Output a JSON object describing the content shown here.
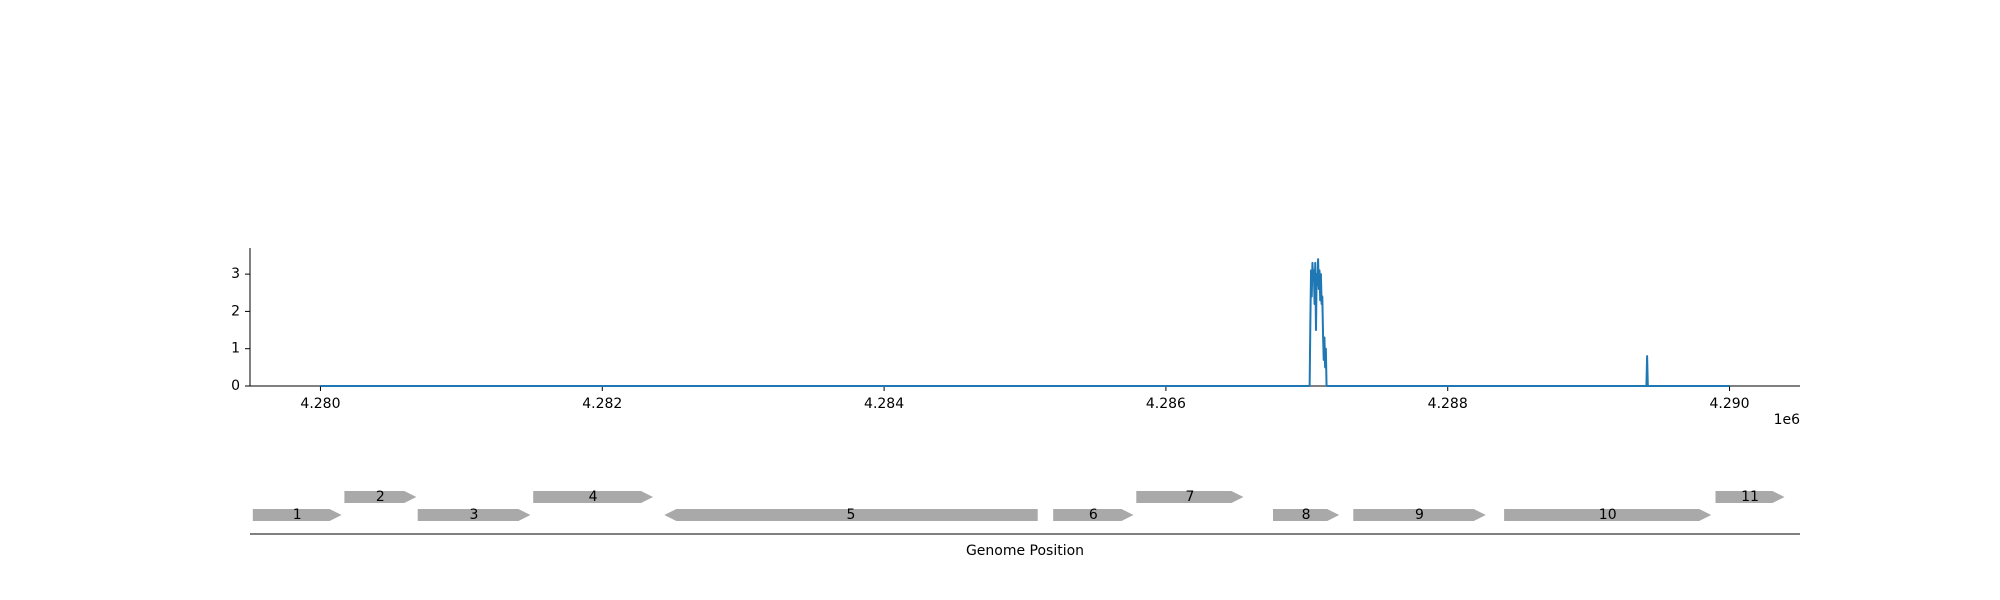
{
  "chart_data": [
    {
      "type": "line",
      "title": "",
      "xlabel": "",
      "ylabel": "",
      "xlim": [
        4279500,
        4290500
      ],
      "ylim": [
        0,
        3.7
      ],
      "x_ticks": [
        4280000,
        4282000,
        4284000,
        4286000,
        4288000,
        4290000
      ],
      "x_tick_labels": [
        "4.280",
        "4.282",
        "4.284",
        "4.286",
        "4.288",
        "4.290"
      ],
      "x_offset_label": "1e6",
      "y_ticks": [
        0,
        1,
        2,
        3
      ],
      "y_tick_labels": [
        "0",
        "1",
        "2",
        "3"
      ],
      "grid": false,
      "series": [
        {
          "color": "#1f77b4",
          "x": [
            4280000,
            4287020,
            4287025,
            4287030,
            4287035,
            4287040,
            4287045,
            4287050,
            4287055,
            4287060,
            4287065,
            4287070,
            4287075,
            4287080,
            4287085,
            4287090,
            4287095,
            4287100,
            4287105,
            4287110,
            4287115,
            4287120,
            4287125,
            4287130,
            4287135,
            4287140,
            4289410,
            4289415,
            4289420,
            4289425,
            4290000
          ],
          "y": [
            0,
            0,
            1.7,
            3.1,
            2.4,
            3.3,
            2.9,
            3.1,
            2.2,
            3.3,
            1.5,
            3.0,
            2.7,
            3.4,
            2.6,
            3.1,
            2.3,
            3.0,
            2.2,
            2.4,
            1.4,
            0.7,
            1.3,
            0.5,
            1.0,
            0,
            0,
            0.8,
            0,
            0,
            0
          ]
        }
      ]
    },
    {
      "type": "gene_track",
      "xlabel": "Genome Position",
      "xlim": [
        4279500,
        4290500
      ],
      "genes": [
        {
          "label": "1",
          "start": 4279520,
          "end": 4280150,
          "strand": "+",
          "row": 0
        },
        {
          "label": "2",
          "start": 4280170,
          "end": 4280680,
          "strand": "+",
          "row": 1
        },
        {
          "label": "3",
          "start": 4280690,
          "end": 4281490,
          "strand": "+",
          "row": 0
        },
        {
          "label": "4",
          "start": 4281510,
          "end": 4282360,
          "strand": "+",
          "row": 1
        },
        {
          "label": "5",
          "start": 4282440,
          "end": 4285090,
          "strand": "-",
          "row": 0
        },
        {
          "label": "6",
          "start": 4285200,
          "end": 4285770,
          "strand": "+",
          "row": 0
        },
        {
          "label": "7",
          "start": 4285790,
          "end": 4286550,
          "strand": "+",
          "row": 1
        },
        {
          "label": "8",
          "start": 4286760,
          "end": 4287230,
          "strand": "+",
          "row": 0
        },
        {
          "label": "9",
          "start": 4287330,
          "end": 4288270,
          "strand": "+",
          "row": 0
        },
        {
          "label": "10",
          "start": 4288400,
          "end": 4289870,
          "strand": "+",
          "row": 0
        },
        {
          "label": "11",
          "start": 4289900,
          "end": 4290390,
          "strand": "+",
          "row": 1
        }
      ],
      "gene_color": "#a9a9a9"
    }
  ]
}
